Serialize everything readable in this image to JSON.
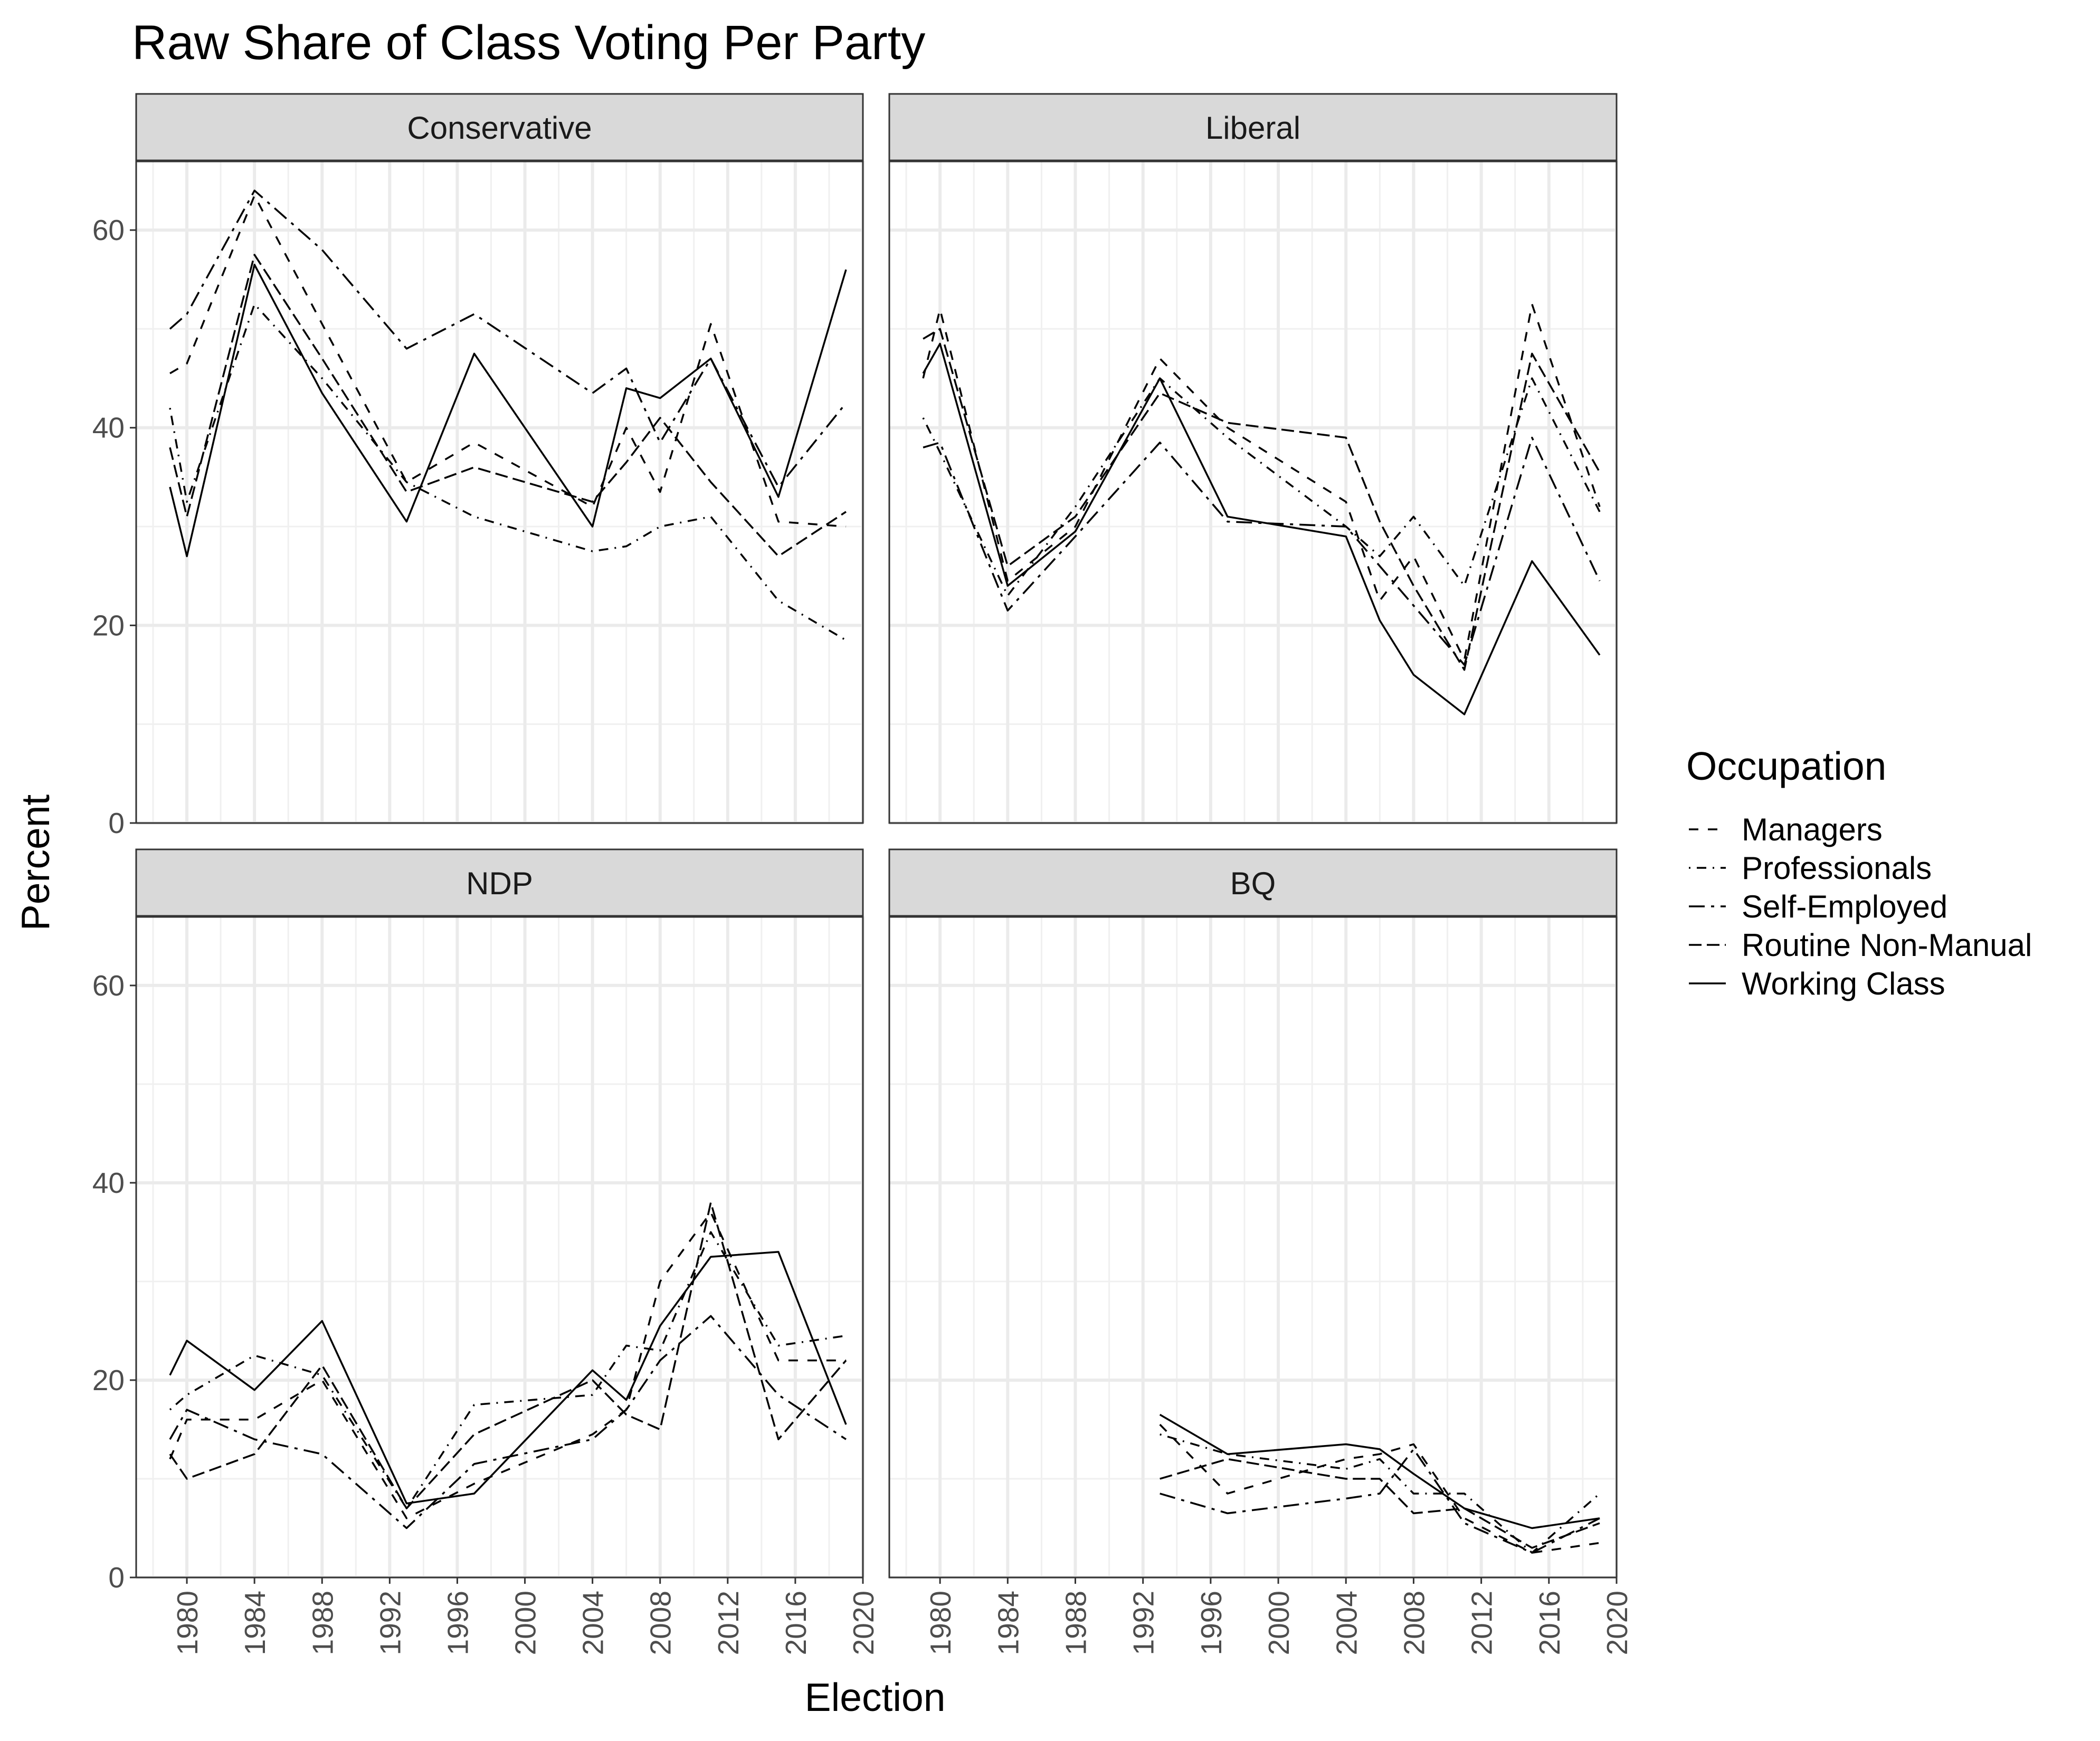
{
  "title": "Raw Share of Class Voting Per Party",
  "legend": {
    "title": "Occupation",
    "position": "right"
  },
  "chart_data": {
    "type": "line",
    "title": "Raw Share of Class Voting Per Party",
    "xlabel": "Election",
    "ylabel": "Percent",
    "xlim": [
      1977,
      2020
    ],
    "ylim": [
      0,
      67
    ],
    "x_ticks": [
      1980,
      1984,
      1988,
      1992,
      1996,
      2000,
      2004,
      2008,
      2012,
      2016,
      2020
    ],
    "y_ticks": [
      0,
      20,
      40,
      60
    ],
    "grid": true,
    "facets": [
      "Conservative",
      "Liberal",
      "NDP",
      "BQ"
    ],
    "series_styles": [
      {
        "name": "Managers",
        "dash": "18,18"
      },
      {
        "name": "Professionals",
        "dash": "3,12,18,12"
      },
      {
        "name": "Self-Employed",
        "dash": "30,12,6,12"
      },
      {
        "name": "Routine Non-Manual",
        "dash": "24,10"
      },
      {
        "name": "Working Class",
        "dash": ""
      }
    ],
    "panels": [
      {
        "facet": "Conservative",
        "series": [
          {
            "name": "Managers",
            "x": [
              1979,
              1980,
              1984,
              1988,
              1993,
              1997,
              2004,
              2006,
              2008,
              2011,
              2015,
              2019
            ],
            "y": [
              45.5,
              46.5,
              63.5,
              50.5,
              34.5,
              38.5,
              32.0,
              40.0,
              33.5,
              50.5,
              30.5,
              30.0
            ]
          },
          {
            "name": "Professionals",
            "x": [
              1979,
              1980,
              1984,
              1988,
              1993,
              1997,
              2004,
              2006,
              2008,
              2011,
              2015,
              2019
            ],
            "y": [
              42.0,
              32.5,
              52.5,
              45.0,
              34.5,
              31.0,
              27.5,
              28.0,
              30.0,
              31.0,
              22.5,
              18.5
            ]
          },
          {
            "name": "Self-Employed",
            "x": [
              1979,
              1980,
              1984,
              1988,
              1993,
              1997,
              2004,
              2006,
              2008,
              2011,
              2015,
              2019
            ],
            "y": [
              50.0,
              51.5,
              64.0,
              58.0,
              48.0,
              51.5,
              43.5,
              46.0,
              38.5,
              47.0,
              34.0,
              42.5
            ]
          },
          {
            "name": "Routine Non-Manual",
            "x": [
              1979,
              1980,
              1984,
              1988,
              1993,
              1997,
              2004,
              2006,
              2008,
              2011,
              2015,
              2019
            ],
            "y": [
              38.0,
              31.0,
              57.5,
              47.0,
              33.5,
              36.0,
              32.5,
              36.5,
              41.0,
              34.5,
              27.0,
              31.5
            ]
          },
          {
            "name": "Working Class",
            "x": [
              1979,
              1980,
              1984,
              1988,
              1993,
              1997,
              2004,
              2006,
              2008,
              2011,
              2015,
              2019
            ],
            "y": [
              34.0,
              27.0,
              56.5,
              43.5,
              30.5,
              47.5,
              30.0,
              44.0,
              43.0,
              47.0,
              33.0,
              56.0
            ]
          }
        ]
      },
      {
        "facet": "Liberal",
        "series": [
          {
            "name": "Managers",
            "x": [
              1979,
              1980,
              1984,
              1988,
              1993,
              1997,
              2004,
              2006,
              2008,
              2011,
              2015,
              2019
            ],
            "y": [
              45.0,
              52.0,
              24.5,
              30.0,
              47.0,
              40.0,
              32.5,
              22.5,
              27.0,
              16.5,
              52.5,
              32.0
            ]
          },
          {
            "name": "Professionals",
            "x": [
              1979,
              1980,
              1984,
              1988,
              1993,
              1997,
              2004,
              2006,
              2008,
              2011,
              2015,
              2019
            ],
            "y": [
              41.0,
              37.5,
              23.0,
              32.0,
              45.0,
              39.0,
              30.0,
              27.0,
              31.0,
              24.0,
              45.0,
              31.5
            ]
          },
          {
            "name": "Self-Employed",
            "x": [
              1979,
              1980,
              1984,
              1988,
              1993,
              1997,
              2004,
              2006,
              2008,
              2011,
              2015,
              2019
            ],
            "y": [
              38.0,
              38.5,
              21.5,
              29.0,
              38.5,
              30.5,
              30.0,
              26.0,
              22.0,
              16.0,
              39.0,
              24.5
            ]
          },
          {
            "name": "Routine Non-Manual",
            "x": [
              1979,
              1980,
              1984,
              1988,
              1993,
              1997,
              2004,
              2006,
              2008,
              2011,
              2015,
              2019
            ],
            "y": [
              49.0,
              50.0,
              26.0,
              31.0,
              43.5,
              40.5,
              39.0,
              30.5,
              24.0,
              15.5,
              47.5,
              35.5
            ]
          },
          {
            "name": "Working Class",
            "x": [
              1979,
              1980,
              1984,
              1988,
              1993,
              1997,
              2004,
              2006,
              2008,
              2011,
              2015,
              2019
            ],
            "y": [
              45.5,
              48.5,
              24.0,
              29.5,
              45.0,
              31.0,
              29.0,
              20.5,
              15.0,
              11.0,
              26.5,
              17.0
            ]
          }
        ]
      },
      {
        "facet": "NDP",
        "series": [
          {
            "name": "Managers",
            "x": [
              1979,
              1980,
              1984,
              1988,
              1993,
              1997,
              2004,
              2006,
              2008,
              2011,
              2015,
              2019
            ],
            "y": [
              12.0,
              16.0,
              16.0,
              20.0,
              6.0,
              9.5,
              14.5,
              17.0,
              30.0,
              37.0,
              22.0,
              22.0
            ]
          },
          {
            "name": "Professionals",
            "x": [
              1979,
              1980,
              1984,
              1988,
              1993,
              1997,
              2004,
              2006,
              2008,
              2011,
              2015,
              2019
            ],
            "y": [
              17.0,
              18.5,
              22.5,
              20.5,
              7.0,
              17.5,
              18.5,
              23.5,
              23.0,
              35.0,
              23.5,
              24.5
            ]
          },
          {
            "name": "Self-Employed",
            "x": [
              1979,
              1980,
              1984,
              1988,
              1993,
              1997,
              2004,
              2006,
              2008,
              2011,
              2015,
              2019
            ],
            "y": [
              14.0,
              17.0,
              14.0,
              12.5,
              5.0,
              11.5,
              14.0,
              17.0,
              22.0,
              26.5,
              18.5,
              14.0
            ]
          },
          {
            "name": "Routine Non-Manual",
            "x": [
              1979,
              1980,
              1984,
              1988,
              1993,
              1997,
              2004,
              2006,
              2008,
              2011,
              2015,
              2019
            ],
            "y": [
              12.5,
              10.0,
              12.5,
              21.5,
              7.0,
              14.5,
              20.0,
              16.5,
              15.0,
              38.0,
              14.0,
              22.0
            ]
          },
          {
            "name": "Working Class",
            "x": [
              1979,
              1980,
              1984,
              1988,
              1993,
              1997,
              2004,
              2006,
              2008,
              2011,
              2015,
              2019
            ],
            "y": [
              20.5,
              24.0,
              19.0,
              26.0,
              7.5,
              8.5,
              21.0,
              18.0,
              25.5,
              32.5,
              33.0,
              15.5
            ]
          }
        ]
      },
      {
        "facet": "BQ",
        "series": [
          {
            "name": "Managers",
            "x": [
              1993,
              1997,
              2004,
              2006,
              2008,
              2011,
              2015,
              2019
            ],
            "y": [
              15.5,
              8.5,
              12.0,
              12.5,
              13.5,
              6.0,
              2.5,
              3.5
            ]
          },
          {
            "name": "Professionals",
            "x": [
              1993,
              1997,
              2004,
              2006,
              2008,
              2011,
              2015,
              2019
            ],
            "y": [
              14.5,
              12.5,
              11.0,
              12.0,
              8.5,
              8.5,
              2.5,
              8.5
            ]
          },
          {
            "name": "Self-Employed",
            "x": [
              1993,
              1997,
              2004,
              2006,
              2008,
              2011,
              2015,
              2019
            ],
            "y": [
              8.5,
              6.5,
              8.0,
              8.5,
              13.0,
              5.5,
              2.5,
              6.0
            ]
          },
          {
            "name": "Routine Non-Manual",
            "x": [
              1993,
              1997,
              2004,
              2006,
              2008,
              2011,
              2015,
              2019
            ],
            "y": [
              10.0,
              12.0,
              10.0,
              10.0,
              6.5,
              7.0,
              3.0,
              5.5
            ]
          },
          {
            "name": "Working Class",
            "x": [
              1993,
              1997,
              2004,
              2006,
              2008,
              2011,
              2015,
              2019
            ],
            "y": [
              16.5,
              12.5,
              13.5,
              13.0,
              10.5,
              7.0,
              5.0,
              6.0
            ]
          }
        ]
      }
    ]
  }
}
